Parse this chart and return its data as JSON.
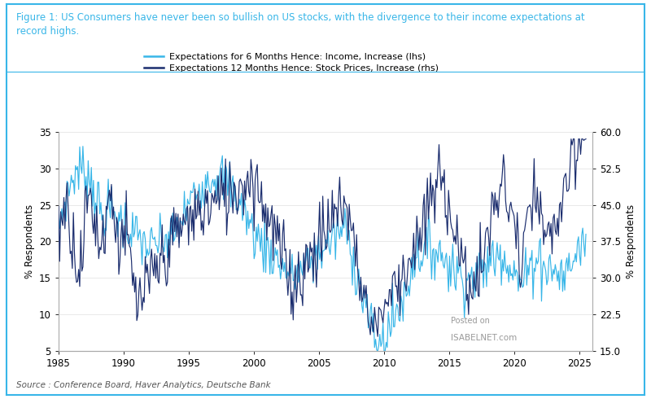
{
  "title_text": "Figure 1: US Consumers have never been so bullish on US stocks, with the divergence to their income expectations at\nrecord highs.",
  "source_text": "Source : Conference Board, Haver Analytics, Deutsche Bank",
  "legend1": "Expectations for 6 Months Hence: Income, Increase (lhs)",
  "legend2": "Expectations 12 Months Hence: Stock Prices, Increase (rhs)",
  "color_lhs": "#38B6E8",
  "color_rhs": "#1B2D6E",
  "title_color": "#38B6E8",
  "border_color": "#38B6E8",
  "lhs_ylim": [
    5,
    35
  ],
  "rhs_ylim": [
    15.0,
    60.0
  ],
  "lhs_yticks": [
    5,
    10,
    15,
    20,
    25,
    30,
    35
  ],
  "rhs_yticks": [
    15.0,
    22.5,
    30.0,
    37.5,
    45.0,
    52.5,
    60.0
  ],
  "xlim": [
    1985,
    2026
  ],
  "xticks": [
    1985,
    1990,
    1995,
    2000,
    2005,
    2010,
    2015,
    2020,
    2025
  ],
  "watermark_line1": "Posted on",
  "watermark_line2": "ISABELNET.com",
  "background_color": "#FFFFFF"
}
